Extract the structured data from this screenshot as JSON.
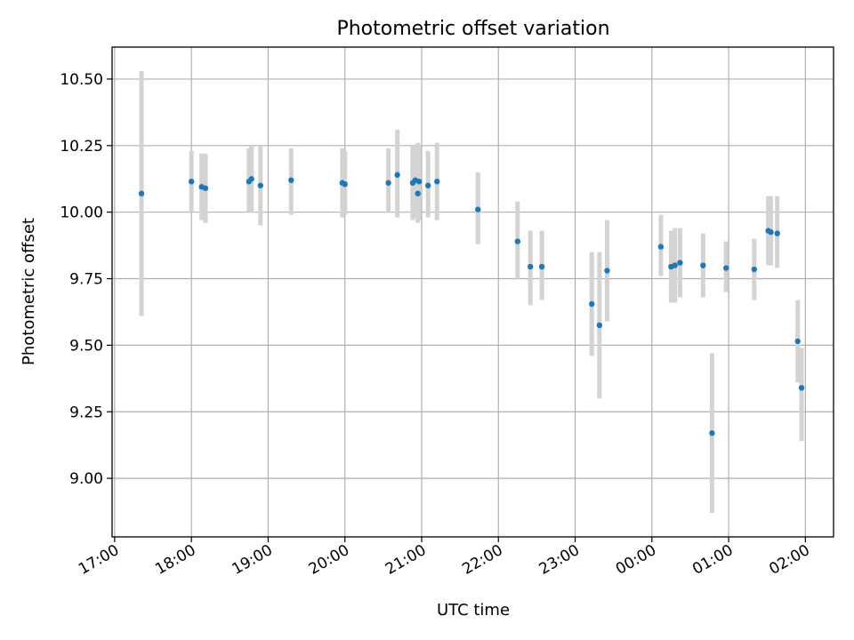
{
  "chart_data": {
    "type": "scatter",
    "title": "Photometric offset variation",
    "xlabel": "UTC time",
    "ylabel": "Photometric offset",
    "xlim": [
      "2024-01-01T16:58",
      "2024-01-02T02:22"
    ],
    "ylim": [
      8.78,
      10.62
    ],
    "x_tick_values": [
      "2024-01-01T17:00",
      "2024-01-01T18:00",
      "2024-01-01T19:00",
      "2024-01-01T20:00",
      "2024-01-01T21:00",
      "2024-01-01T22:00",
      "2024-01-01T23:00",
      "2024-01-02T00:00",
      "2024-01-02T01:00",
      "2024-01-02T02:00"
    ],
    "x_tick_labels": [
      "17:00",
      "18:00",
      "19:00",
      "20:00",
      "21:00",
      "22:00",
      "23:00",
      "00:00",
      "01:00",
      "02:00"
    ],
    "y_tick_values": [
      9.0,
      9.25,
      9.5,
      9.75,
      10.0,
      10.25,
      10.5
    ],
    "y_tick_labels": [
      "9.00",
      "9.25",
      "9.50",
      "9.75",
      "10.00",
      "10.25",
      "10.50"
    ],
    "grid": true,
    "colors": {
      "point": "#1f77b4",
      "errorbar": "#d3d3d3",
      "grid": "#b0b0b0"
    },
    "points": [
      {
        "x": "2024-01-01T17:21",
        "y": 10.07,
        "ylow": 9.61,
        "yhigh": 10.53
      },
      {
        "x": "2024-01-01T18:00",
        "y": 10.115,
        "ylow": 10.0,
        "yhigh": 10.23
      },
      {
        "x": "2024-01-01T18:08",
        "y": 10.095,
        "ylow": 9.97,
        "yhigh": 10.22
      },
      {
        "x": "2024-01-01T18:11",
        "y": 10.09,
        "ylow": 9.96,
        "yhigh": 10.22
      },
      {
        "x": "2024-01-01T18:45",
        "y": 10.115,
        "ylow": 10.0,
        "yhigh": 10.24
      },
      {
        "x": "2024-01-01T18:47",
        "y": 10.125,
        "ylow": 10.0,
        "yhigh": 10.25
      },
      {
        "x": "2024-01-01T18:54",
        "y": 10.1,
        "ylow": 9.95,
        "yhigh": 10.25
      },
      {
        "x": "2024-01-01T19:18",
        "y": 10.12,
        "ylow": 9.99,
        "yhigh": 10.24
      },
      {
        "x": "2024-01-01T19:58",
        "y": 10.11,
        "ylow": 9.98,
        "yhigh": 10.24
      },
      {
        "x": "2024-01-01T20:00",
        "y": 10.105,
        "ylow": 9.99,
        "yhigh": 10.23
      },
      {
        "x": "2024-01-01T20:34",
        "y": 10.11,
        "ylow": 10.0,
        "yhigh": 10.24
      },
      {
        "x": "2024-01-01T20:41",
        "y": 10.14,
        "ylow": 9.98,
        "yhigh": 10.31
      },
      {
        "x": "2024-01-01T20:53",
        "y": 10.11,
        "ylow": 9.97,
        "yhigh": 10.25
      },
      {
        "x": "2024-01-01T20:55",
        "y": 10.12,
        "ylow": 9.98,
        "yhigh": 10.25
      },
      {
        "x": "2024-01-01T20:57",
        "y": 10.07,
        "ylow": 9.96,
        "yhigh": 10.26
      },
      {
        "x": "2024-01-01T20:58",
        "y": 10.115,
        "ylow": 9.97,
        "yhigh": 10.25
      },
      {
        "x": "2024-01-01T21:05",
        "y": 10.1,
        "ylow": 9.98,
        "yhigh": 10.23
      },
      {
        "x": "2024-01-01T21:12",
        "y": 10.115,
        "ylow": 9.97,
        "yhigh": 10.26
      },
      {
        "x": "2024-01-01T21:44",
        "y": 10.01,
        "ylow": 9.88,
        "yhigh": 10.15
      },
      {
        "x": "2024-01-01T22:15",
        "y": 9.89,
        "ylow": 9.75,
        "yhigh": 10.04
      },
      {
        "x": "2024-01-01T22:25",
        "y": 9.795,
        "ylow": 9.65,
        "yhigh": 9.93
      },
      {
        "x": "2024-01-01T22:34",
        "y": 9.795,
        "ylow": 9.67,
        "yhigh": 9.93
      },
      {
        "x": "2024-01-01T23:13",
        "y": 9.655,
        "ylow": 9.46,
        "yhigh": 9.85
      },
      {
        "x": "2024-01-01T23:19",
        "y": 9.575,
        "ylow": 9.3,
        "yhigh": 9.85
      },
      {
        "x": "2024-01-01T23:25",
        "y": 9.78,
        "ylow": 9.59,
        "yhigh": 9.97
      },
      {
        "x": "2024-01-02T00:07",
        "y": 9.87,
        "ylow": 9.76,
        "yhigh": 9.99
      },
      {
        "x": "2024-01-02T00:15",
        "y": 9.795,
        "ylow": 9.66,
        "yhigh": 9.93
      },
      {
        "x": "2024-01-02T00:18",
        "y": 9.8,
        "ylow": 9.66,
        "yhigh": 9.94
      },
      {
        "x": "2024-01-02T00:22",
        "y": 9.81,
        "ylow": 9.68,
        "yhigh": 9.94
      },
      {
        "x": "2024-01-02T00:40",
        "y": 9.8,
        "ylow": 9.68,
        "yhigh": 9.92
      },
      {
        "x": "2024-01-02T00:47",
        "y": 9.17,
        "ylow": 8.87,
        "yhigh": 9.47
      },
      {
        "x": "2024-01-02T00:58",
        "y": 9.79,
        "ylow": 9.7,
        "yhigh": 9.89
      },
      {
        "x": "2024-01-02T01:20",
        "y": 9.785,
        "ylow": 9.67,
        "yhigh": 9.9
      },
      {
        "x": "2024-01-02T01:31",
        "y": 9.93,
        "ylow": 9.8,
        "yhigh": 10.06
      },
      {
        "x": "2024-01-02T01:33",
        "y": 9.925,
        "ylow": 9.8,
        "yhigh": 10.06
      },
      {
        "x": "2024-01-02T01:38",
        "y": 9.92,
        "ylow": 9.79,
        "yhigh": 10.06
      },
      {
        "x": "2024-01-02T01:54",
        "y": 9.515,
        "ylow": 9.36,
        "yhigh": 9.67
      },
      {
        "x": "2024-01-02T01:57",
        "y": 9.34,
        "ylow": 9.14,
        "yhigh": 9.49
      }
    ]
  }
}
